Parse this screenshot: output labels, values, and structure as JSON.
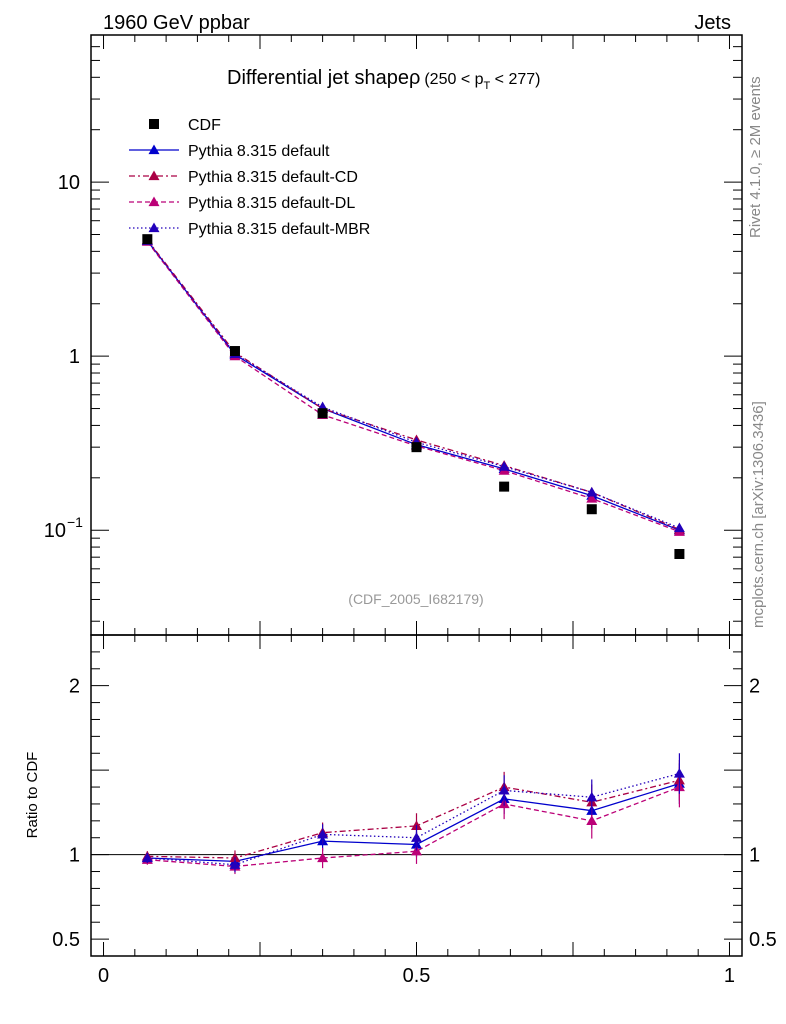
{
  "header": {
    "left": "1960 GeV ppbar",
    "right": "Jets"
  },
  "side": {
    "rivet": "Rivet 4.1.0, ≥ 2M events",
    "site": "mcplots.cern.ch [arXiv:1306.3436]"
  },
  "title": {
    "main": "Differential jet shapeρ",
    "range_open": "(250 < p",
    "range_sub": "T",
    "range_close": " < 277)"
  },
  "analysis_id": "(CDF_2005_I682179)",
  "ratio_ylabel": "Ratio to CDF",
  "colors": {
    "data": "#000000",
    "default": "#0000cc",
    "cd": "#aa0044",
    "dl": "#bb0077",
    "mbr": "#2200bb"
  },
  "chart_data": {
    "type": "scatter",
    "x": [
      0.07,
      0.21,
      0.35,
      0.5,
      0.64,
      0.78,
      0.92
    ],
    "xlim": [
      -0.02,
      1.02
    ],
    "ylim": [
      0.025,
      70
    ],
    "yscale": "log",
    "ratio_ylim": [
      0.4,
      2.3
    ],
    "main_yticks": [
      {
        "value": 10,
        "label": "10"
      },
      {
        "value": 1,
        "label": "1"
      },
      {
        "value": 0.1,
        "label": "10",
        "sup": "−1"
      }
    ],
    "ratio_yticks": [
      {
        "value": 2,
        "label": "2"
      },
      {
        "value": 1,
        "label": "1"
      },
      {
        "value": 0.5,
        "label": "0.5"
      }
    ],
    "xticks": [
      {
        "value": 0,
        "label": "0"
      },
      {
        "value": 0.5,
        "label": "0.5"
      },
      {
        "value": 1,
        "label": "1"
      }
    ],
    "data": {
      "name": "CDF",
      "values": [
        4.7,
        1.07,
        0.47,
        0.3,
        0.178,
        0.132,
        0.073
      ]
    },
    "series": [
      {
        "name": "Pythia 8.315 default",
        "key": "default",
        "dash": "",
        "values": [
          4.6,
          1.02,
          0.5,
          0.31,
          0.225,
          0.158,
          0.1
        ],
        "ratio": [
          0.98,
          0.96,
          1.08,
          1.06,
          1.33,
          1.26,
          1.42
        ]
      },
      {
        "name": "Pythia 8.315 default-CD",
        "key": "cd",
        "dash": "6,3,2,3",
        "values": [
          4.65,
          1.05,
          0.5,
          0.33,
          0.235,
          0.165,
          0.101
        ],
        "ratio": [
          0.99,
          0.98,
          1.13,
          1.17,
          1.4,
          1.31,
          1.44
        ]
      },
      {
        "name": "Pythia 8.315 default-DL",
        "key": "dl",
        "dash": "5,3",
        "values": [
          4.55,
          1.0,
          0.46,
          0.305,
          0.22,
          0.152,
          0.098
        ],
        "ratio": [
          0.97,
          0.93,
          0.98,
          1.02,
          1.3,
          1.2,
          1.4
        ]
      },
      {
        "name": "Pythia 8.315 default-MBR",
        "key": "mbr",
        "dash": "1.5,2.5",
        "values": [
          4.6,
          1.03,
          0.51,
          0.32,
          0.232,
          0.165,
          0.103
        ],
        "ratio": [
          0.98,
          0.94,
          1.12,
          1.1,
          1.38,
          1.34,
          1.48
        ]
      }
    ]
  }
}
